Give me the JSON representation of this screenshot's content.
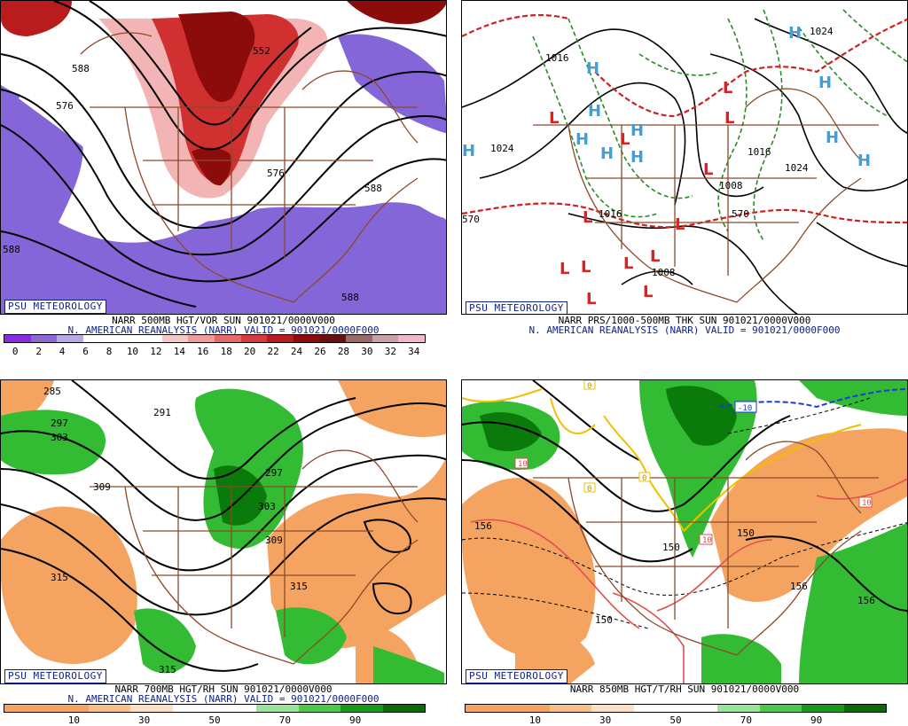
{
  "panels": [
    {
      "badge": "PSU METEOROLOGY",
      "caption1": "NARR 500MB HGT/VOR SUN 901021/0000V000",
      "caption2": "N. AMERICAN REANALYSIS (NARR) VALID = 901021/0000F000",
      "colorbar": {
        "colors": [
          "#8a2be2",
          "#8a6ad0",
          "#b7a8e6",
          "#ffffff",
          "#ffffff",
          "#ffffff",
          "#f7c8c8",
          "#f09a9a",
          "#e46a6a",
          "#d63c3c",
          "#b81c1c",
          "#8c0c0c",
          "#6a1010",
          "#9a6a6a",
          "#c8a0a8",
          "#f0b8c8"
        ],
        "ticks": [
          "0",
          "2",
          "4",
          "6",
          "8",
          "10",
          "12",
          "14",
          "16",
          "18",
          "20",
          "22",
          "24",
          "26",
          "28",
          "30",
          "32",
          "34"
        ]
      },
      "labels": [
        "588",
        "576",
        "588",
        "576",
        "588",
        "588",
        "552"
      ]
    },
    {
      "badge": "PSU METEOROLOGY",
      "caption1": "NARR PRS/1000-500MB THK SUN 901021/0000V000",
      "caption2": "N. AMERICAN REANALYSIS (NARR) VALID = 901021/0000F000",
      "labels": [
        "1024",
        "1016",
        "1008",
        "1016",
        "1024",
        "1016",
        "1008",
        "570",
        "570",
        "1024"
      ]
    },
    {
      "badge": "PSU METEOROLOGY",
      "caption1": "NARR 700MB HGT/RH SUN 901021/0000V000",
      "caption2": "N. AMERICAN REANALYSIS (NARR) VALID = 901021/0000F000",
      "colorbar": {
        "colors": [
          "#f4a460",
          "#f4a460",
          "#f7c08a",
          "#fbe0c8",
          "#ffffff",
          "#ffffff",
          "#9be39b",
          "#4cc84c",
          "#1a9a1a",
          "#0a6a0a"
        ],
        "ticks": [
          "10",
          "30",
          "50",
          "70",
          "90"
        ]
      },
      "labels": [
        "285",
        "297",
        "303",
        "309",
        "315",
        "315",
        "309",
        "291",
        "297",
        "303",
        "315"
      ]
    },
    {
      "badge": "PSU METEOROLOGY",
      "caption1": "NARR 850MB HGT/T/RH SUN 901021/0000V000",
      "colorbar": {
        "colors": [
          "#f4a460",
          "#f4a460",
          "#f7c08a",
          "#fbe0c8",
          "#ffffff",
          "#ffffff",
          "#9be39b",
          "#4cc84c",
          "#1a9a1a",
          "#0a6a0a"
        ],
        "ticks": [
          "10",
          "30",
          "50",
          "70",
          "90"
        ]
      },
      "labels": [
        "156",
        "150",
        "150",
        "156",
        "150",
        "156",
        "10",
        "10",
        "10",
        "-10",
        "0",
        "0",
        "0"
      ]
    }
  ],
  "colors": {
    "purple": "#8466d8",
    "red": "#d03030",
    "darkred": "#8c0c0c",
    "pink": "#f2b4b4",
    "orange": "#f4a460",
    "green": "#33bb33",
    "darkgreen": "#0a7a0a",
    "border": "#8b4a2b",
    "blue": "#3aa0e0",
    "Lred": "#e02020"
  }
}
